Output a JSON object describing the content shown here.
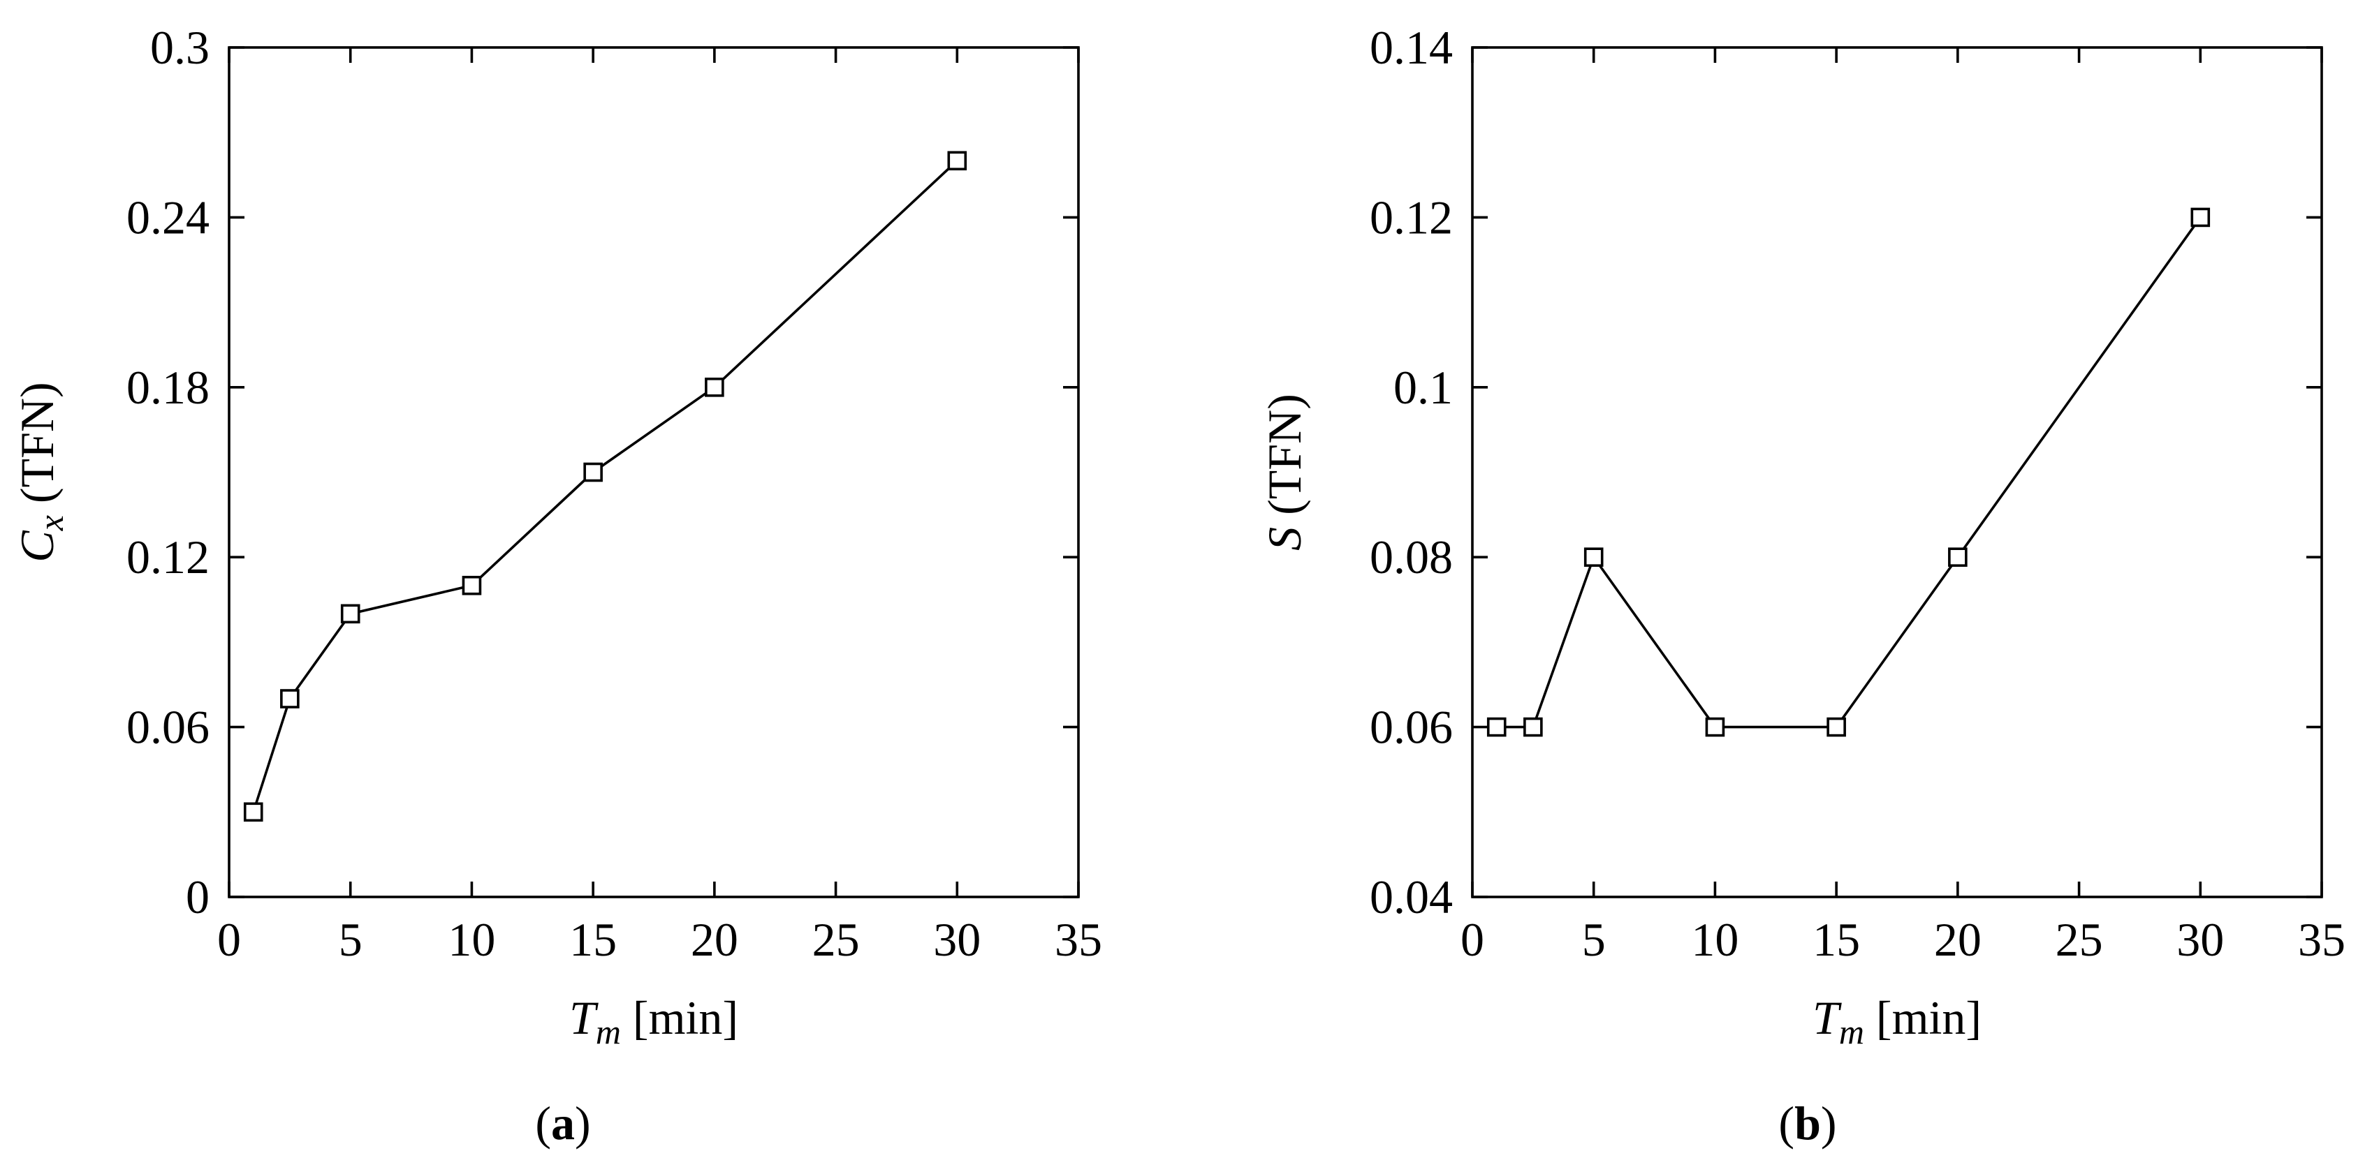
{
  "colors": {
    "line": "#000000",
    "marker_fill": "#ffffff",
    "background": "#ffffff"
  },
  "chart_data": [
    {
      "type": "line",
      "panel_label": "a",
      "xlabel": {
        "symbol": "T",
        "subscript": "m",
        "unit": "[min]"
      },
      "ylabel": {
        "symbol": "C",
        "subscript": "x",
        "unit": "(TFN)"
      },
      "xlim": [
        0,
        35
      ],
      "ylim": [
        0,
        0.3
      ],
      "xticks": [
        "0",
        "5",
        "10",
        "15",
        "20",
        "25",
        "30",
        "35"
      ],
      "xtick_values": [
        0,
        5,
        10,
        15,
        20,
        25,
        30,
        35
      ],
      "yticks": [
        "0",
        "0.06",
        "0.12",
        "0.18",
        "0.24",
        "0.3"
      ],
      "ytick_values": [
        0,
        0.06,
        0.12,
        0.18,
        0.24,
        0.3
      ],
      "grid": false,
      "marker": "open-square",
      "series": [
        {
          "x": [
            1,
            2.5,
            5,
            10,
            15,
            20,
            30
          ],
          "y": [
            0.03,
            0.07,
            0.1,
            0.11,
            0.15,
            0.18,
            0.26
          ]
        }
      ]
    },
    {
      "type": "line",
      "panel_label": "b",
      "xlabel": {
        "symbol": "T",
        "subscript": "m",
        "unit": "[min]"
      },
      "ylabel": {
        "symbol": "S",
        "subscript": "",
        "unit": "(TFN)"
      },
      "xlim": [
        0,
        35
      ],
      "ylim": [
        0.04,
        0.14
      ],
      "xticks": [
        "0",
        "5",
        "10",
        "15",
        "20",
        "25",
        "30",
        "35"
      ],
      "xtick_values": [
        0,
        5,
        10,
        15,
        20,
        25,
        30,
        35
      ],
      "yticks": [
        "0.04",
        "0.06",
        "0.08",
        "0.1",
        "0.12",
        "0.14"
      ],
      "ytick_values": [
        0.04,
        0.06,
        0.08,
        0.1,
        0.12,
        0.14
      ],
      "grid": false,
      "marker": "open-square",
      "series": [
        {
          "x": [
            1,
            2.5,
            5,
            10,
            15,
            20,
            30
          ],
          "y": [
            0.06,
            0.06,
            0.08,
            0.06,
            0.06,
            0.08,
            0.12
          ]
        }
      ]
    }
  ]
}
